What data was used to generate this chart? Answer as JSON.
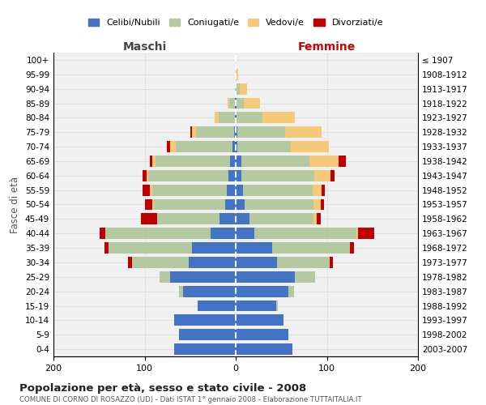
{
  "age_groups": [
    "0-4",
    "5-9",
    "10-14",
    "15-19",
    "20-24",
    "25-29",
    "30-34",
    "35-39",
    "40-44",
    "45-49",
    "50-54",
    "55-59",
    "60-64",
    "65-69",
    "70-74",
    "75-79",
    "80-84",
    "85-89",
    "90-94",
    "95-99",
    "100+"
  ],
  "birth_years": [
    "2003-2007",
    "1998-2002",
    "1993-1997",
    "1988-1992",
    "1983-1987",
    "1978-1982",
    "1973-1977",
    "1968-1972",
    "1963-1967",
    "1958-1962",
    "1953-1957",
    "1948-1952",
    "1943-1947",
    "1938-1942",
    "1933-1937",
    "1928-1932",
    "1923-1927",
    "1918-1922",
    "1913-1917",
    "1908-1912",
    "≤ 1907"
  ],
  "male": {
    "celibi": [
      68,
      62,
      68,
      42,
      58,
      72,
      52,
      48,
      28,
      18,
      12,
      10,
      8,
      6,
      4,
      2,
      1,
      1,
      0,
      0,
      0
    ],
    "coniugati": [
      0,
      0,
      0,
      0,
      4,
      12,
      62,
      92,
      115,
      68,
      78,
      82,
      88,
      82,
      62,
      42,
      18,
      6,
      1,
      0,
      0
    ],
    "vedovi": [
      0,
      0,
      0,
      0,
      0,
      0,
      0,
      0,
      0,
      0,
      2,
      2,
      2,
      4,
      6,
      4,
      4,
      2,
      0,
      0,
      0
    ],
    "divorziati": [
      0,
      0,
      0,
      0,
      0,
      0,
      4,
      4,
      6,
      18,
      8,
      8,
      4,
      2,
      4,
      2,
      0,
      0,
      0,
      0,
      0
    ]
  },
  "female": {
    "nubili": [
      62,
      58,
      52,
      44,
      58,
      65,
      45,
      40,
      20,
      15,
      10,
      8,
      6,
      6,
      2,
      2,
      1,
      1,
      0,
      0,
      0
    ],
    "coniugate": [
      0,
      0,
      0,
      2,
      6,
      22,
      58,
      85,
      112,
      70,
      75,
      76,
      80,
      75,
      58,
      52,
      28,
      8,
      4,
      1,
      0
    ],
    "vedove": [
      0,
      0,
      0,
      0,
      0,
      0,
      0,
      0,
      2,
      4,
      8,
      10,
      18,
      32,
      42,
      40,
      36,
      18,
      8,
      2,
      0
    ],
    "divorziate": [
      0,
      0,
      0,
      0,
      0,
      0,
      4,
      5,
      18,
      4,
      4,
      4,
      4,
      8,
      0,
      0,
      0,
      0,
      0,
      0,
      0
    ]
  },
  "colors": {
    "celibi_nubili": "#4472C4",
    "coniugati": "#B5C9A1",
    "vedovi": "#F5C97A",
    "divorziati": "#C00000"
  },
  "xlim": 200,
  "title": "Popolazione per età, sesso e stato civile - 2008",
  "subtitle": "COMUNE DI CORNO DI ROSAZZO (UD) - Dati ISTAT 1° gennaio 2008 - Elaborazione TUTTAITALIA.IT",
  "ylabel_left": "Fasce di età",
  "xlabel_left": "Maschi",
  "xlabel_right": "Femmine",
  "legend_labels": [
    "Celibi/Nubili",
    "Coniugati/e",
    "Vedovi/e",
    "Divorziati/e"
  ],
  "bg_color": "#F0F0F0",
  "grid_color": "#CCCCCC"
}
